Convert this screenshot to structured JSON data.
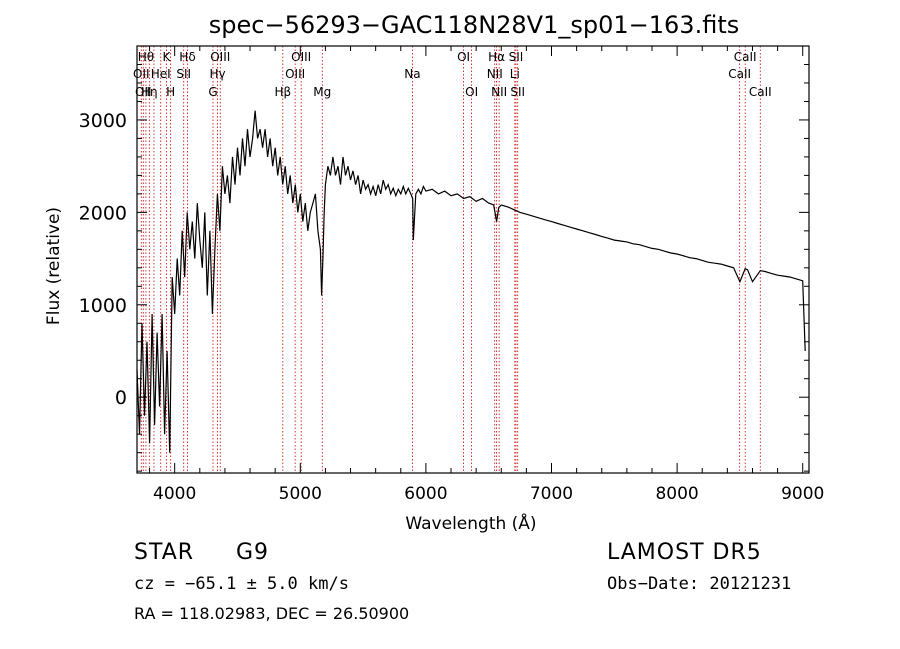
{
  "chart_data": {
    "type": "line",
    "title": "spec−56293−GAC118N28V1_sp01−163.fits",
    "xlabel": "Wavelength (Å)",
    "ylabel": "Flux (relative)",
    "xlim": [
      3700,
      9050
    ],
    "ylim": [
      -820,
      3800
    ],
    "xticks": [
      4000,
      5000,
      6000,
      7000,
      8000,
      9000
    ],
    "yticks": [
      0,
      1000,
      2000,
      3000
    ],
    "grid": false,
    "series": [
      {
        "x": [
          3700,
          3720,
          3740,
          3760,
          3780,
          3800,
          3820,
          3840,
          3860,
          3880,
          3900,
          3920,
          3940,
          3960,
          3980,
          4000,
          4020,
          4040,
          4060,
          4080,
          4100,
          4120,
          4140,
          4160,
          4180,
          4200,
          4220,
          4240,
          4260,
          4280,
          4300,
          4320,
          4340,
          4360,
          4380,
          4400,
          4420,
          4440,
          4460,
          4480,
          4500,
          4520,
          4540,
          4560,
          4580,
          4600,
          4620,
          4640,
          4660,
          4680,
          4700,
          4720,
          4740,
          4760,
          4780,
          4800,
          4820,
          4840,
          4860,
          4880,
          4900,
          4920,
          4940,
          4960,
          4980,
          5000,
          5020,
          5040,
          5060,
          5080,
          5100,
          5120,
          5140,
          5160,
          5170,
          5180,
          5190,
          5200,
          5220,
          5240,
          5260,
          5280,
          5300,
          5320,
          5340,
          5360,
          5380,
          5400,
          5420,
          5440,
          5460,
          5480,
          5500,
          5520,
          5540,
          5560,
          5580,
          5600,
          5620,
          5640,
          5660,
          5680,
          5700,
          5720,
          5740,
          5760,
          5780,
          5800,
          5820,
          5840,
          5860,
          5880,
          5895,
          5900,
          5920,
          5940,
          5960,
          5980,
          6000,
          6050,
          6100,
          6150,
          6200,
          6250,
          6300,
          6350,
          6400,
          6450,
          6500,
          6540,
          6563,
          6580,
          6600,
          6650,
          6700,
          6750,
          6800,
          6850,
          6900,
          6950,
          7000,
          7050,
          7100,
          7150,
          7200,
          7250,
          7300,
          7350,
          7400,
          7450,
          7500,
          7550,
          7600,
          7650,
          7700,
          7750,
          7800,
          7850,
          7900,
          7950,
          8000,
          8050,
          8100,
          8150,
          8200,
          8250,
          8300,
          8350,
          8400,
          8450,
          8500,
          8542,
          8560,
          8600,
          8662,
          8700,
          8750,
          8800,
          8850,
          8900,
          8950,
          9000,
          9020
        ],
        "y": [
          300,
          -400,
          800,
          -200,
          600,
          -500,
          900,
          -300,
          700,
          -100,
          900,
          -400,
          500,
          -600,
          1300,
          900,
          1500,
          1100,
          1800,
          1300,
          2000,
          1600,
          1900,
          1500,
          2100,
          1700,
          1400,
          2000,
          1100,
          1800,
          900,
          1600,
          2200,
          1800,
          2500,
          2200,
          2400,
          2100,
          2600,
          2300,
          2700,
          2400,
          2800,
          2500,
          2900,
          2600,
          2800,
          3100,
          2800,
          2900,
          2700,
          2900,
          2600,
          2800,
          2500,
          2700,
          2400,
          2600,
          2300,
          2500,
          2200,
          2400,
          2100,
          2300,
          2000,
          2200,
          1900,
          2100,
          1800,
          2000,
          2100,
          2200,
          1800,
          1600,
          1100,
          1500,
          2000,
          2300,
          2500,
          2400,
          2600,
          2400,
          2500,
          2300,
          2600,
          2400,
          2500,
          2350,
          2450,
          2300,
          2400,
          2200,
          2350,
          2250,
          2300,
          2200,
          2280,
          2180,
          2300,
          2200,
          2350,
          2250,
          2300,
          2200,
          2260,
          2180,
          2250,
          2200,
          2280,
          2200,
          2260,
          2200,
          2150,
          1700,
          2200,
          2250,
          2200,
          2280,
          2230,
          2250,
          2200,
          2230,
          2180,
          2200,
          2150,
          2170,
          2120,
          2150,
          2100,
          2080,
          1900,
          2050,
          2080,
          2060,
          2030,
          2000,
          1980,
          1960,
          1940,
          1920,
          1900,
          1880,
          1860,
          1840,
          1820,
          1800,
          1780,
          1760,
          1740,
          1720,
          1700,
          1690,
          1680,
          1660,
          1650,
          1630,
          1610,
          1600,
          1580,
          1560,
          1550,
          1530,
          1510,
          1500,
          1480,
          1460,
          1450,
          1440,
          1420,
          1400,
          1250,
          1390,
          1380,
          1250,
          1370,
          1360,
          1340,
          1320,
          1310,
          1300,
          1280,
          1260,
          500
        ]
      }
    ],
    "lines": [
      {
        "wl": 3734,
        "label": "OII",
        "row": 1
      },
      {
        "wl": 3750,
        "label": "OII",
        "row": 2
      },
      {
        "wl": 3771,
        "label": "Hθ",
        "row": 0
      },
      {
        "wl": 3798,
        "label": "Hη",
        "row": 2
      },
      {
        "wl": 3835,
        "label": "",
        "row": 0
      },
      {
        "wl": 3889,
        "label": "HeI",
        "row": 1
      },
      {
        "wl": 3934,
        "label": "K",
        "row": 0
      },
      {
        "wl": 3968,
        "label": "H",
        "row": 2
      },
      {
        "wl": 4072,
        "label": "SII",
        "row": 1
      },
      {
        "wl": 4102,
        "label": "Hδ",
        "row": 0
      },
      {
        "wl": 4305,
        "label": "G",
        "row": 2
      },
      {
        "wl": 4341,
        "label": "Hγ",
        "row": 1
      },
      {
        "wl": 4363,
        "label": "OIII",
        "row": 0
      },
      {
        "wl": 4861,
        "label": "Hβ",
        "row": 2
      },
      {
        "wl": 4959,
        "label": "OIII",
        "row": 1
      },
      {
        "wl": 5007,
        "label": "OIII",
        "row": 0
      },
      {
        "wl": 5175,
        "label": "Mg",
        "row": 2
      },
      {
        "wl": 5893,
        "label": "Na",
        "row": 1
      },
      {
        "wl": 6300,
        "label": "OI",
        "row": 0
      },
      {
        "wl": 6364,
        "label": "OI",
        "row": 2
      },
      {
        "wl": 6548,
        "label": "NII",
        "row": 1
      },
      {
        "wl": 6563,
        "label": "Hα",
        "row": 0
      },
      {
        "wl": 6583,
        "label": "NII",
        "row": 2
      },
      {
        "wl": 6708,
        "label": "Li",
        "row": 1
      },
      {
        "wl": 6717,
        "label": "SII",
        "row": 0
      },
      {
        "wl": 6731,
        "label": "SII",
        "row": 2
      },
      {
        "wl": 8498,
        "label": "CaII",
        "row": 1
      },
      {
        "wl": 8542,
        "label": "CaII",
        "row": 0
      },
      {
        "wl": 8662,
        "label": "CaII",
        "row": 2
      }
    ]
  },
  "info": {
    "class_label": "STAR",
    "subclass": "G9",
    "survey": "LAMOST DR5",
    "cz": "cz = −65.1 ± 5.0 km/s",
    "obs_date": "Obs−Date: 20121231",
    "coords": "RA = 118.02983, DEC =  26.50900"
  },
  "colors": {
    "line_marker": "#cc0000",
    "spectrum": "#000000",
    "axes": "#000000"
  }
}
